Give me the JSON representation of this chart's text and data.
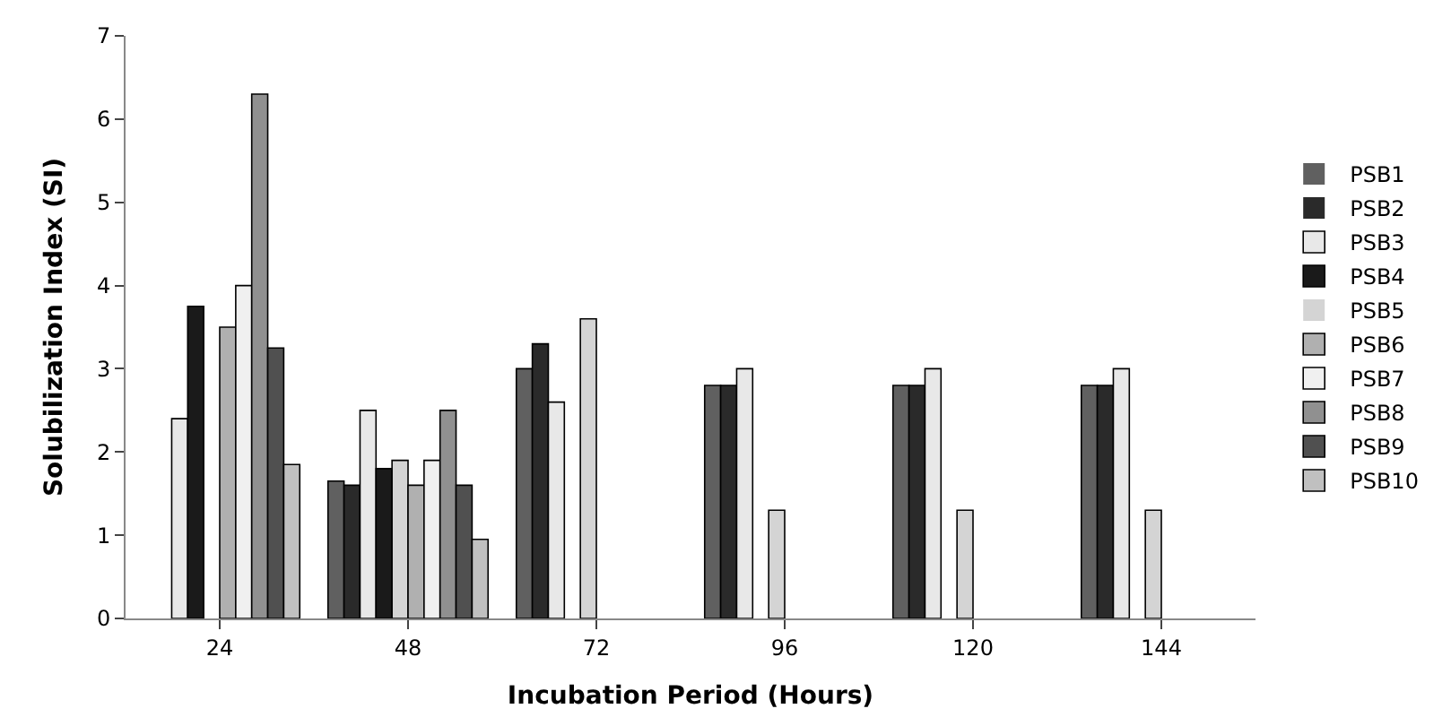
{
  "chart_data": {
    "type": "bar",
    "xlabel": "Incubation Period (Hours)",
    "ylabel": "Solubilization Index (SI)",
    "categories": [
      "24",
      "48",
      "72",
      "96",
      "120",
      "144"
    ],
    "ylim": [
      0,
      7
    ],
    "yticks": [
      0,
      1,
      2,
      3,
      4,
      5,
      6,
      7
    ],
    "legend": "right",
    "series": [
      {
        "name": "PSB1",
        "color": "#606060",
        "values": [
          0,
          1.65,
          3.0,
          2.8,
          2.8,
          2.8
        ]
      },
      {
        "name": "PSB2",
        "color": "#2a2a2a",
        "values": [
          0,
          1.6,
          3.3,
          2.8,
          2.8,
          2.8
        ]
      },
      {
        "name": "PSB3",
        "color": "#e8e8e8",
        "values": [
          2.4,
          2.5,
          2.6,
          3.0,
          3.0,
          3.0
        ]
      },
      {
        "name": "PSB4",
        "color": "#1a1a1a",
        "values": [
          3.75,
          1.8,
          0,
          0,
          0,
          0
        ]
      },
      {
        "name": "PSB5",
        "color": "#d4d4d4",
        "values": [
          0,
          1.9,
          3.6,
          1.3,
          1.3,
          1.3
        ]
      },
      {
        "name": "PSB6",
        "color": "#b0b0b0",
        "values": [
          3.5,
          1.6,
          0,
          0,
          0,
          0
        ]
      },
      {
        "name": "PSB7",
        "color": "#f0f0f0",
        "values": [
          4.0,
          1.9,
          0,
          0,
          0,
          0
        ]
      },
      {
        "name": "PSB8",
        "color": "#909090",
        "values": [
          6.3,
          2.5,
          0,
          0,
          0,
          0
        ]
      },
      {
        "name": "PSB9",
        "color": "#505050",
        "values": [
          3.25,
          1.6,
          0,
          0,
          0,
          0
        ]
      },
      {
        "name": "PSB10",
        "color": "#c0c0c0",
        "values": [
          1.85,
          0.95,
          0,
          0,
          0,
          0
        ]
      }
    ]
  }
}
